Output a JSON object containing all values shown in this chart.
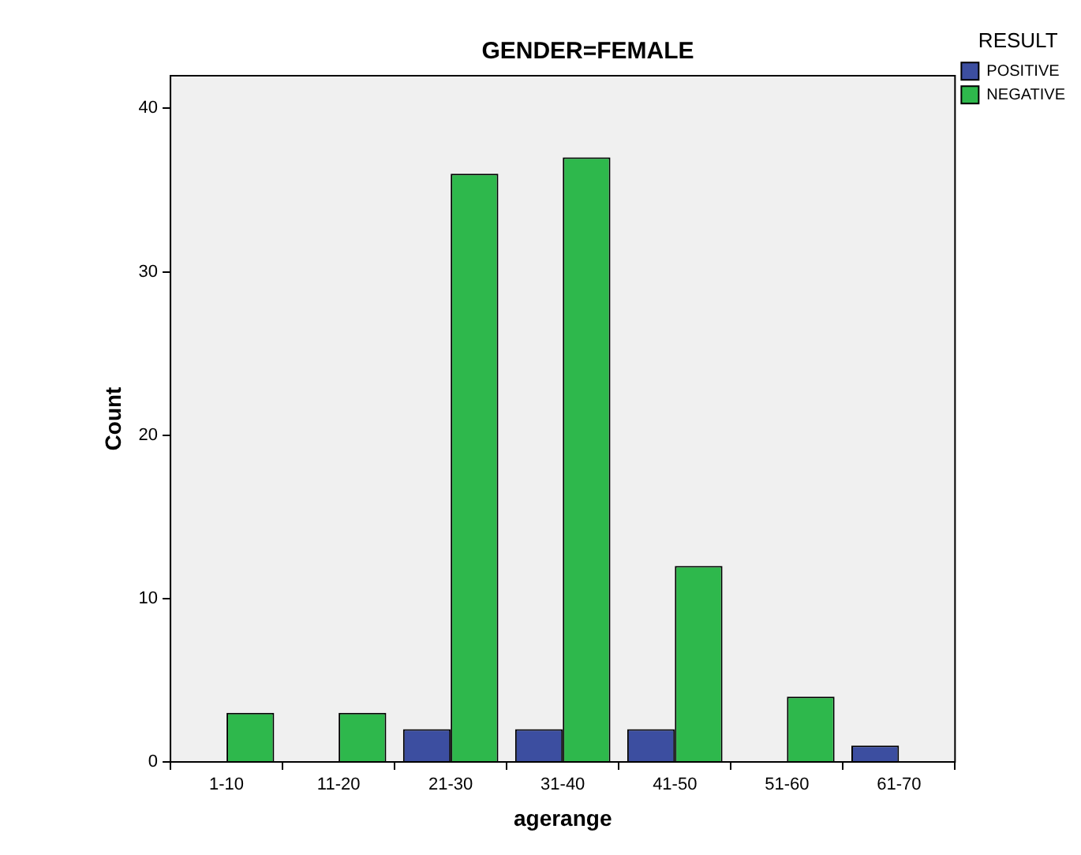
{
  "chart_data": {
    "type": "bar",
    "title": "GENDER=FEMALE",
    "xlabel": "agerange",
    "ylabel": "Count",
    "legend_title": "RESULT",
    "categories": [
      "1-10",
      "11-20",
      "21-30",
      "31-40",
      "41-50",
      "51-60",
      "61-70"
    ],
    "series": [
      {
        "name": "POSITIVE",
        "color": "#3c4ea0",
        "values": [
          null,
          null,
          2,
          2,
          2,
          null,
          1
        ]
      },
      {
        "name": "NEGATIVE",
        "color": "#2eb84c",
        "values": [
          3,
          3,
          36,
          37,
          12,
          4,
          null
        ]
      }
    ],
    "ylim": [
      0,
      42
    ],
    "yticks": [
      0,
      10,
      20,
      30,
      40
    ],
    "grid": false,
    "legend": "top right"
  }
}
